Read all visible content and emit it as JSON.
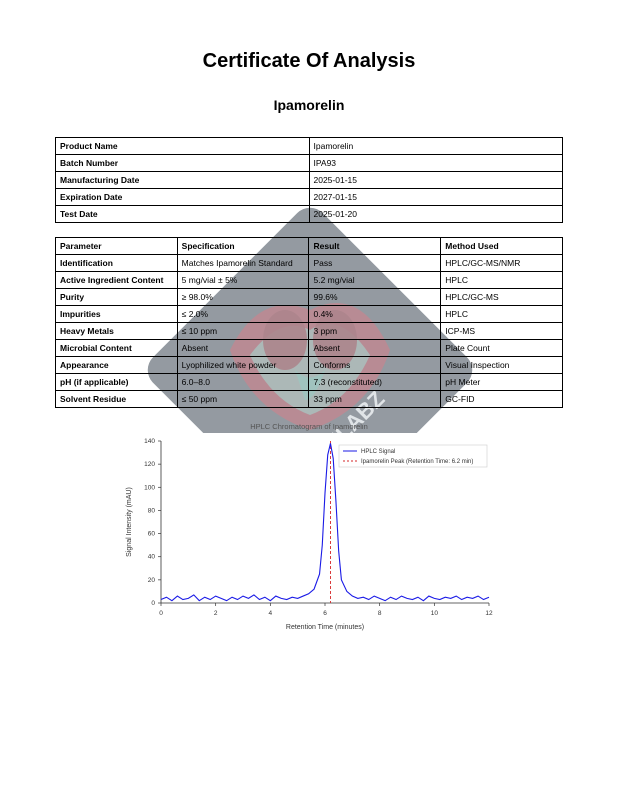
{
  "doc": {
    "title": "Certificate Of Analysis",
    "subtitle": "Ipamorelin"
  },
  "info_table": {
    "rows": [
      {
        "label": "Product Name",
        "value": "Ipamorelin"
      },
      {
        "label": "Batch Number",
        "value": "IPA93"
      },
      {
        "label": "Manufacturing Date",
        "value": "2025-01-15"
      },
      {
        "label": "Expiration Date",
        "value": "2027-01-15"
      },
      {
        "label": "Test Date",
        "value": "2025-01-20"
      }
    ]
  },
  "spec_table": {
    "headers": [
      "Parameter",
      "Specification",
      "Result",
      "Method Used"
    ],
    "rows": [
      {
        "parameter": "Identification",
        "specification": "Matches Ipamorelin Standard",
        "result": "Pass",
        "method": "HPLC/GC-MS/NMR"
      },
      {
        "parameter": "Active Ingredient Content",
        "specification": "5 mg/vial ± 5%",
        "result": "5.2 mg/vial",
        "method": "HPLC"
      },
      {
        "parameter": "Purity",
        "specification": "≥ 98.0%",
        "result": "99.6%",
        "method": "HPLC/GC-MS"
      },
      {
        "parameter": "Impurities",
        "specification": "≤ 2.0%",
        "result": "0.4%",
        "method": "HPLC"
      },
      {
        "parameter": "Heavy Metals",
        "specification": "≤ 10 ppm",
        "result": "3 ppm",
        "method": "ICP-MS"
      },
      {
        "parameter": "Microbial Content",
        "specification": "Absent",
        "result": "Absent",
        "method": "Plate Count"
      },
      {
        "parameter": "Appearance",
        "specification": "Lyophilized white powder",
        "result": "Conforms",
        "method": "Visual Inspection"
      },
      {
        "parameter": "pH (if applicable)",
        "specification": "6.0–8.0",
        "result": "7.3 (reconstituted)",
        "method": "pH Meter"
      },
      {
        "parameter": "Solvent Residue",
        "specification": "≤ 50 ppm",
        "result": "33 ppm",
        "method": "GC-FID"
      }
    ]
  },
  "chart": {
    "type": "line",
    "title": "HPLC Chromatogram of Ipamorelin",
    "xlabel": "Retention Time (minutes)",
    "ylabel": "Signal Intensity (mAU)",
    "xlim": [
      0,
      12
    ],
    "ylim": [
      0,
      140
    ],
    "xtick_step": 2,
    "ytick_step": 20,
    "line_color": "#1a1ae6",
    "line_width": 1.1,
    "peak_line_color": "#d62728",
    "peak_line_dash": "3,2",
    "peak_x": 6.2,
    "background_color": "#ffffff",
    "axis_color": "#333333",
    "grid_color": "#e8e8e8",
    "title_fontsize": 7.5,
    "label_fontsize": 7,
    "tick_fontsize": 6.5,
    "legend": {
      "items": [
        {
          "label": "HPLC Signal",
          "color": "#1a1ae6",
          "style": "solid"
        },
        {
          "label": "Ipamorelin Peak (Retention Time: 6.2 min)",
          "color": "#d62728",
          "style": "dash"
        }
      ],
      "border_color": "#cccccc",
      "bg_color": "#ffffff"
    },
    "data": [
      {
        "x": 0.0,
        "y": 3
      },
      {
        "x": 0.2,
        "y": 5
      },
      {
        "x": 0.4,
        "y": 2
      },
      {
        "x": 0.6,
        "y": 6
      },
      {
        "x": 0.8,
        "y": 3
      },
      {
        "x": 1.0,
        "y": 4
      },
      {
        "x": 1.2,
        "y": 7
      },
      {
        "x": 1.4,
        "y": 2
      },
      {
        "x": 1.6,
        "y": 5
      },
      {
        "x": 1.8,
        "y": 3
      },
      {
        "x": 2.0,
        "y": 6
      },
      {
        "x": 2.2,
        "y": 4
      },
      {
        "x": 2.4,
        "y": 2
      },
      {
        "x": 2.6,
        "y": 5
      },
      {
        "x": 2.8,
        "y": 3
      },
      {
        "x": 3.0,
        "y": 6
      },
      {
        "x": 3.2,
        "y": 4
      },
      {
        "x": 3.4,
        "y": 7
      },
      {
        "x": 3.6,
        "y": 3
      },
      {
        "x": 3.8,
        "y": 5
      },
      {
        "x": 4.0,
        "y": 2
      },
      {
        "x": 4.2,
        "y": 6
      },
      {
        "x": 4.4,
        "y": 4
      },
      {
        "x": 4.6,
        "y": 3
      },
      {
        "x": 4.8,
        "y": 5
      },
      {
        "x": 5.0,
        "y": 4
      },
      {
        "x": 5.2,
        "y": 6
      },
      {
        "x": 5.4,
        "y": 8
      },
      {
        "x": 5.6,
        "y": 12
      },
      {
        "x": 5.8,
        "y": 25
      },
      {
        "x": 5.9,
        "y": 50
      },
      {
        "x": 6.0,
        "y": 95
      },
      {
        "x": 6.1,
        "y": 128
      },
      {
        "x": 6.2,
        "y": 138
      },
      {
        "x": 6.3,
        "y": 125
      },
      {
        "x": 6.4,
        "y": 88
      },
      {
        "x": 6.5,
        "y": 45
      },
      {
        "x": 6.6,
        "y": 20
      },
      {
        "x": 6.8,
        "y": 10
      },
      {
        "x": 7.0,
        "y": 6
      },
      {
        "x": 7.2,
        "y": 4
      },
      {
        "x": 7.4,
        "y": 5
      },
      {
        "x": 7.6,
        "y": 3
      },
      {
        "x": 7.8,
        "y": 6
      },
      {
        "x": 8.0,
        "y": 4
      },
      {
        "x": 8.2,
        "y": 2
      },
      {
        "x": 8.4,
        "y": 5
      },
      {
        "x": 8.6,
        "y": 3
      },
      {
        "x": 8.8,
        "y": 6
      },
      {
        "x": 9.0,
        "y": 4
      },
      {
        "x": 9.2,
        "y": 3
      },
      {
        "x": 9.4,
        "y": 5
      },
      {
        "x": 9.6,
        "y": 2
      },
      {
        "x": 9.8,
        "y": 6
      },
      {
        "x": 10.0,
        "y": 4
      },
      {
        "x": 10.2,
        "y": 3
      },
      {
        "x": 10.4,
        "y": 5
      },
      {
        "x": 10.6,
        "y": 4
      },
      {
        "x": 10.8,
        "y": 6
      },
      {
        "x": 11.0,
        "y": 3
      },
      {
        "x": 11.2,
        "y": 5
      },
      {
        "x": 11.4,
        "y": 4
      },
      {
        "x": 11.6,
        "y": 6
      },
      {
        "x": 11.8,
        "y": 3
      },
      {
        "x": 12.0,
        "y": 5
      }
    ]
  },
  "watermark": {
    "diamond_fill": "#3d4856",
    "accent1": "#8b2a3a",
    "accent2": "#5ab5a8",
    "text_color": "#d8dde3",
    "label": "BEHEMOTHLABZ"
  }
}
